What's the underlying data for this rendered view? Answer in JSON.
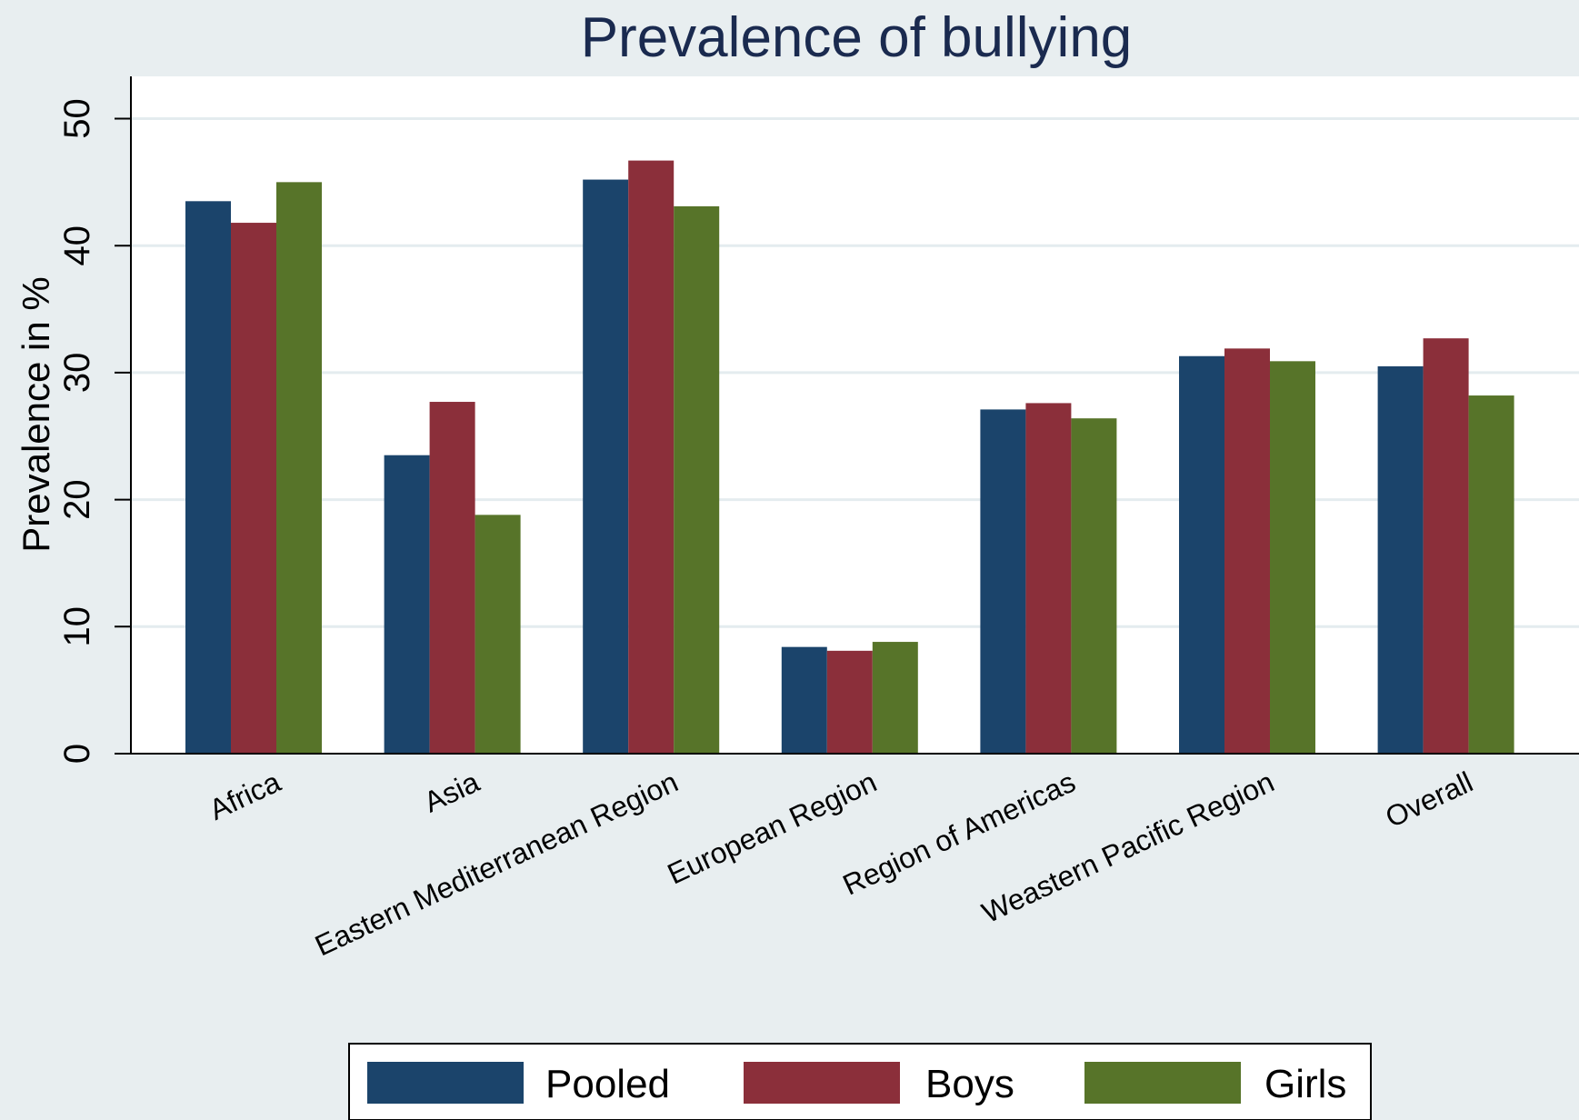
{
  "chart_data": {
    "type": "bar",
    "title": "Prevalence of bullying",
    "xlabel": "",
    "ylabel": "Prevalence in %",
    "ylim": [
      0,
      53
    ],
    "yticks": [
      "0",
      "10",
      "20",
      "30",
      "40",
      "50"
    ],
    "grid": true,
    "legend_position": "bottom",
    "categories": [
      "Africa",
      "Asia",
      "Eastern Mediterranean Region",
      "European Region",
      "Region of Americas",
      "Weastern Pacific Region",
      "Overall"
    ],
    "series": [
      {
        "name": "Pooled",
        "color": "#1b446b",
        "values": [
          43.5,
          23.5,
          45.2,
          8.4,
          27.1,
          31.3,
          30.5
        ]
      },
      {
        "name": "Boys",
        "color": "#8b2f3a",
        "values": [
          41.8,
          27.7,
          46.7,
          8.1,
          27.6,
          31.9,
          32.7
        ]
      },
      {
        "name": "Girls",
        "color": "#577429",
        "values": [
          45.0,
          18.8,
          43.1,
          8.8,
          26.4,
          30.9,
          28.2
        ]
      }
    ]
  }
}
